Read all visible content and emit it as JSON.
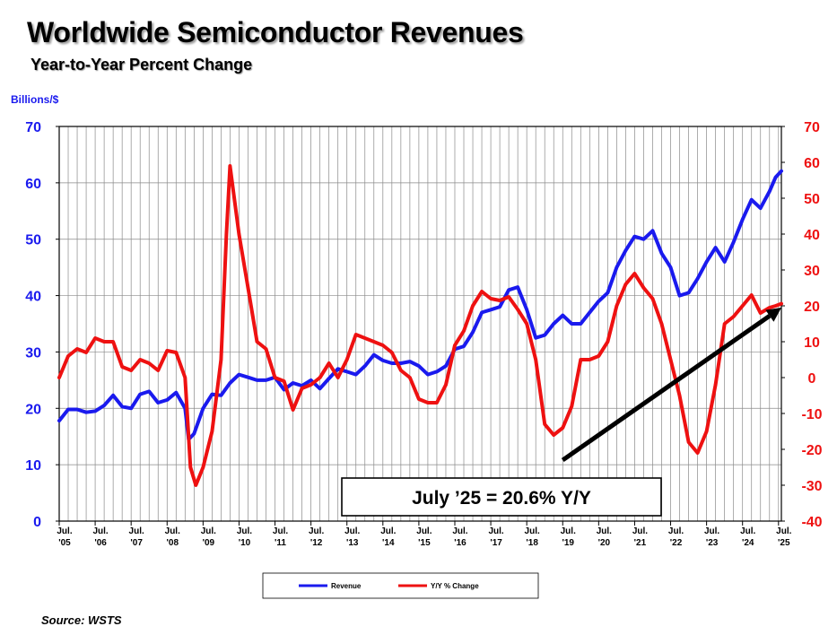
{
  "chart_data": {
    "type": "line",
    "title": "Worldwide Semiconductor Revenues",
    "subtitle": "Year-to-Year Percent Change",
    "left_axis_unit": "Billions/$",
    "left_ylim": [
      0,
      70
    ],
    "left_yticks": [
      "0",
      "10",
      "20",
      "30",
      "40",
      "50",
      "60",
      "70"
    ],
    "right_ylim": [
      -40,
      70
    ],
    "right_yticks": [
      "-40",
      "-30",
      "-20",
      "-10",
      "0",
      "10",
      "20",
      "30",
      "40",
      "50",
      "60",
      "70"
    ],
    "xlim": [
      2005.5,
      2025.58
    ],
    "grid": true,
    "legend_position": "bottom",
    "x_ticks": [
      {
        "x": 2005.5,
        "month": "Jul.",
        "year": "'05"
      },
      {
        "x": 2006.5,
        "month": "Jul.",
        "year": "'06"
      },
      {
        "x": 2007.5,
        "month": "Jul.",
        "year": "'07"
      },
      {
        "x": 2008.5,
        "month": "Jul.",
        "year": "'08"
      },
      {
        "x": 2009.5,
        "month": "Jul.",
        "year": "'09"
      },
      {
        "x": 2010.5,
        "month": "Jul.",
        "year": "'10"
      },
      {
        "x": 2011.5,
        "month": "Jul.",
        "year": "'11"
      },
      {
        "x": 2012.5,
        "month": "Jul.",
        "year": "'12"
      },
      {
        "x": 2013.5,
        "month": "Jul.",
        "year": "'13"
      },
      {
        "x": 2014.5,
        "month": "Jul.",
        "year": "'14"
      },
      {
        "x": 2015.5,
        "month": "Jul.",
        "year": "'15"
      },
      {
        "x": 2016.5,
        "month": "Jul.",
        "year": "'16"
      },
      {
        "x": 2017.5,
        "month": "Jul.",
        "year": "'17"
      },
      {
        "x": 2018.5,
        "month": "Jul.",
        "year": "'18"
      },
      {
        "x": 2019.5,
        "month": "Jul.",
        "year": "'19"
      },
      {
        "x": 2020.5,
        "month": "Jul.",
        "year": "'20"
      },
      {
        "x": 2021.5,
        "month": "Jul.",
        "year": "'21"
      },
      {
        "x": 2022.5,
        "month": "Jul.",
        "year": "'22"
      },
      {
        "x": 2023.5,
        "month": "Jul.",
        "year": "'23"
      },
      {
        "x": 2024.5,
        "month": "Jul.",
        "year": "'24"
      },
      {
        "x": 2025.5,
        "month": "Jul.",
        "year": "'25"
      }
    ],
    "series": [
      {
        "name": "Revenue",
        "axis": "left",
        "color": "#1a1aee",
        "points": [
          [
            2005.5,
            17.8
          ],
          [
            2005.75,
            19.8
          ],
          [
            2006.0,
            19.8
          ],
          [
            2006.25,
            19.3
          ],
          [
            2006.5,
            19.5
          ],
          [
            2006.75,
            20.5
          ],
          [
            2007.0,
            22.3
          ],
          [
            2007.25,
            20.3
          ],
          [
            2007.5,
            20.0
          ],
          [
            2007.75,
            22.5
          ],
          [
            2008.0,
            23.0
          ],
          [
            2008.25,
            21.0
          ],
          [
            2008.5,
            21.5
          ],
          [
            2008.75,
            22.8
          ],
          [
            2009.0,
            20.0
          ],
          [
            2009.1,
            14.5
          ],
          [
            2009.25,
            15.5
          ],
          [
            2009.5,
            20.0
          ],
          [
            2009.75,
            22.5
          ],
          [
            2010.0,
            22.3
          ],
          [
            2010.25,
            24.5
          ],
          [
            2010.5,
            26.0
          ],
          [
            2010.75,
            25.5
          ],
          [
            2011.0,
            25.0
          ],
          [
            2011.25,
            25.0
          ],
          [
            2011.5,
            25.5
          ],
          [
            2011.75,
            23.3
          ],
          [
            2012.0,
            24.5
          ],
          [
            2012.25,
            24.0
          ],
          [
            2012.5,
            25.0
          ],
          [
            2012.75,
            23.5
          ],
          [
            2013.0,
            25.3
          ],
          [
            2013.25,
            27.0
          ],
          [
            2013.5,
            26.5
          ],
          [
            2013.75,
            26.0
          ],
          [
            2014.0,
            27.5
          ],
          [
            2014.25,
            29.5
          ],
          [
            2014.5,
            28.5
          ],
          [
            2014.75,
            28.0
          ],
          [
            2015.0,
            28.0
          ],
          [
            2015.25,
            28.3
          ],
          [
            2015.5,
            27.5
          ],
          [
            2015.75,
            26.0
          ],
          [
            2016.0,
            26.5
          ],
          [
            2016.25,
            27.5
          ],
          [
            2016.5,
            30.5
          ],
          [
            2016.75,
            31.0
          ],
          [
            2017.0,
            33.5
          ],
          [
            2017.25,
            37.0
          ],
          [
            2017.5,
            37.5
          ],
          [
            2017.75,
            38.0
          ],
          [
            2018.0,
            41.0
          ],
          [
            2018.25,
            41.5
          ],
          [
            2018.5,
            37.5
          ],
          [
            2018.75,
            32.5
          ],
          [
            2019.0,
            33.0
          ],
          [
            2019.25,
            35.0
          ],
          [
            2019.5,
            36.5
          ],
          [
            2019.75,
            35.0
          ],
          [
            2020.0,
            35.0
          ],
          [
            2020.25,
            37.0
          ],
          [
            2020.5,
            39.0
          ],
          [
            2020.75,
            40.5
          ],
          [
            2021.0,
            45.0
          ],
          [
            2021.25,
            48.0
          ],
          [
            2021.5,
            50.5
          ],
          [
            2021.75,
            50.0
          ],
          [
            2022.0,
            51.5
          ],
          [
            2022.25,
            47.5
          ],
          [
            2022.5,
            45.0
          ],
          [
            2022.75,
            40.0
          ],
          [
            2023.0,
            40.5
          ],
          [
            2023.25,
            43.0
          ],
          [
            2023.5,
            46.0
          ],
          [
            2023.75,
            48.5
          ],
          [
            2024.0,
            46.0
          ],
          [
            2024.25,
            49.5
          ],
          [
            2024.5,
            53.5
          ],
          [
            2024.75,
            57.0
          ],
          [
            2025.0,
            55.5
          ],
          [
            2025.25,
            58.5
          ],
          [
            2025.42,
            61.0
          ],
          [
            2025.58,
            62.1
          ]
        ]
      },
      {
        "name": "Y/Y % Change",
        "axis": "right",
        "color": "#ee1111",
        "points": [
          [
            2005.5,
            0.0
          ],
          [
            2005.75,
            6.0
          ],
          [
            2006.0,
            8.0
          ],
          [
            2006.25,
            7.0
          ],
          [
            2006.5,
            11.0
          ],
          [
            2006.75,
            10.0
          ],
          [
            2007.0,
            10.0
          ],
          [
            2007.25,
            3.0
          ],
          [
            2007.5,
            2.0
          ],
          [
            2007.75,
            5.0
          ],
          [
            2008.0,
            4.0
          ],
          [
            2008.25,
            2.0
          ],
          [
            2008.5,
            7.5
          ],
          [
            2008.75,
            7.0
          ],
          [
            2009.0,
            0.0
          ],
          [
            2009.15,
            -25.0
          ],
          [
            2009.3,
            -30.0
          ],
          [
            2009.5,
            -25.0
          ],
          [
            2009.75,
            -15.0
          ],
          [
            2010.0,
            5.0
          ],
          [
            2010.15,
            40.0
          ],
          [
            2010.25,
            59.0
          ],
          [
            2010.5,
            40.0
          ],
          [
            2010.75,
            25.0
          ],
          [
            2011.0,
            10.0
          ],
          [
            2011.25,
            8.0
          ],
          [
            2011.5,
            0.0
          ],
          [
            2011.75,
            -1.0
          ],
          [
            2012.0,
            -9.0
          ],
          [
            2012.25,
            -3.0
          ],
          [
            2012.5,
            -2.0
          ],
          [
            2012.75,
            0.0
          ],
          [
            2013.0,
            4.0
          ],
          [
            2013.25,
            0.0
          ],
          [
            2013.5,
            5.0
          ],
          [
            2013.75,
            12.0
          ],
          [
            2014.0,
            11.0
          ],
          [
            2014.25,
            10.0
          ],
          [
            2014.5,
            9.0
          ],
          [
            2014.75,
            7.0
          ],
          [
            2015.0,
            2.0
          ],
          [
            2015.25,
            0.0
          ],
          [
            2015.5,
            -6.0
          ],
          [
            2015.75,
            -7.0
          ],
          [
            2016.0,
            -7.0
          ],
          [
            2016.25,
            -2.0
          ],
          [
            2016.5,
            9.0
          ],
          [
            2016.75,
            13.0
          ],
          [
            2017.0,
            20.0
          ],
          [
            2017.25,
            24.0
          ],
          [
            2017.5,
            22.0
          ],
          [
            2017.75,
            21.5
          ],
          [
            2018.0,
            22.5
          ],
          [
            2018.25,
            19.0
          ],
          [
            2018.5,
            15.0
          ],
          [
            2018.75,
            5.0
          ],
          [
            2019.0,
            -13.0
          ],
          [
            2019.25,
            -16.0
          ],
          [
            2019.5,
            -14.0
          ],
          [
            2019.75,
            -8.0
          ],
          [
            2020.0,
            5.0
          ],
          [
            2020.25,
            5.0
          ],
          [
            2020.5,
            6.0
          ],
          [
            2020.75,
            10.0
          ],
          [
            2021.0,
            20.0
          ],
          [
            2021.25,
            26.0
          ],
          [
            2021.5,
            29.0
          ],
          [
            2021.75,
            25.0
          ],
          [
            2022.0,
            22.0
          ],
          [
            2022.25,
            15.0
          ],
          [
            2022.5,
            5.0
          ],
          [
            2022.75,
            -5.0
          ],
          [
            2023.0,
            -18.0
          ],
          [
            2023.25,
            -21.0
          ],
          [
            2023.5,
            -15.0
          ],
          [
            2023.75,
            -2.0
          ],
          [
            2024.0,
            15.0
          ],
          [
            2024.25,
            17.0
          ],
          [
            2024.5,
            20.0
          ],
          [
            2024.75,
            23.0
          ],
          [
            2025.0,
            18.0
          ],
          [
            2025.25,
            19.5
          ],
          [
            2025.42,
            20.0
          ],
          [
            2025.58,
            20.6
          ]
        ]
      }
    ],
    "trend_arrow": {
      "from": [
        2019.5,
        -23.0
      ],
      "to": [
        2025.58,
        19.5
      ]
    },
    "annotation": "July ’25 = 20.6% Y/Y"
  },
  "source": "Source: WSTS",
  "colors": {
    "revenue": "#1a1aee",
    "yoy": "#ee1111",
    "grid": "#8a8a8a",
    "axis": "#000000"
  }
}
